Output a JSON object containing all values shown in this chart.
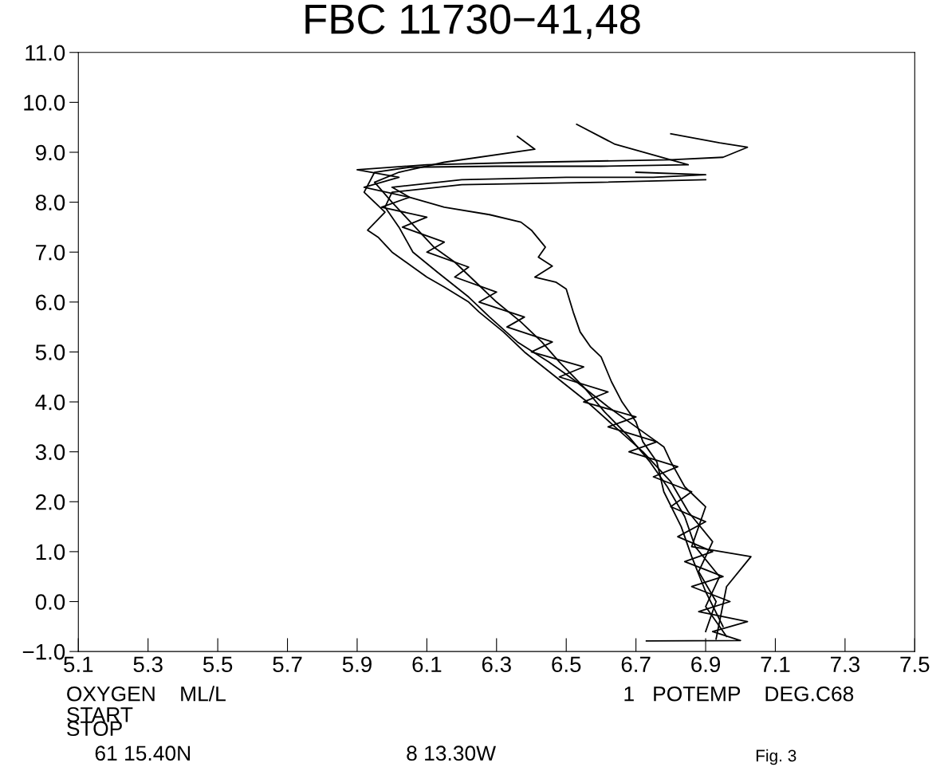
{
  "chart_data": {
    "type": "line",
    "title": "FBC 11730−41,48",
    "xlim": [
      5.1,
      7.5
    ],
    "xticks": [
      5.1,
      5.3,
      5.5,
      5.7,
      5.9,
      6.1,
      6.3,
      6.5,
      6.7,
      6.9,
      7.1,
      7.3,
      7.5
    ],
    "ylim": [
      -1,
      11
    ],
    "yticks": [
      {
        "value": -1,
        "label": "−1.0"
      },
      {
        "value": 0,
        "label": "0.0"
      },
      {
        "value": 1,
        "label": "1.0"
      },
      {
        "value": 2,
        "label": "2.0"
      },
      {
        "value": 3,
        "label": "3.0"
      },
      {
        "value": 4,
        "label": "4.0"
      },
      {
        "value": 5,
        "label": "5.0"
      },
      {
        "value": 6,
        "label": "6.0"
      },
      {
        "value": 7,
        "label": "7.0"
      },
      {
        "value": 8,
        "label": "8.0"
      },
      {
        "value": 9,
        "label": "9.0"
      },
      {
        "value": 10,
        "label": "10.0"
      },
      {
        "value": 11,
        "label": "11.0"
      }
    ],
    "grid": false,
    "marker": "none",
    "line_style": "solid",
    "annotations": [
      "OXYGEN    ML/L",
      "1   POTEMP    DEG.C68",
      "START",
      "STOP",
      "61 15.40N",
      "8 13.30W",
      "Fig. 3"
    ],
    "series": [
      {
        "color": "#000000",
        "x": [
          6.73,
          7.0,
          6.92,
          7.02,
          6.88,
          6.97,
          6.86,
          6.95,
          6.84,
          6.92,
          6.82,
          6.9,
          6.8,
          6.86,
          6.75,
          6.82,
          6.68,
          6.76,
          6.62,
          6.7,
          6.55,
          6.62,
          6.48,
          6.55,
          6.4,
          6.46,
          6.33,
          6.38,
          6.25,
          6.3,
          6.18,
          6.22,
          6.1,
          6.15,
          6.03,
          6.1,
          5.97,
          6.05,
          5.92,
          6.02,
          5.9,
          6.1,
          6.4,
          6.8,
          6.95,
          7.02,
          6.94,
          6.8
        ],
        "values": [
          -0.79,
          -0.78,
          -0.6,
          -0.4,
          -0.2,
          0.0,
          0.3,
          0.5,
          0.8,
          1.0,
          1.3,
          1.6,
          1.9,
          2.2,
          2.5,
          2.7,
          3.0,
          3.2,
          3.5,
          3.7,
          4.0,
          4.2,
          4.5,
          4.7,
          5.0,
          5.2,
          5.5,
          5.7,
          6.0,
          6.2,
          6.5,
          6.7,
          7.0,
          7.2,
          7.5,
          7.7,
          7.9,
          8.1,
          8.3,
          8.5,
          8.65,
          8.75,
          8.8,
          8.85,
          8.9,
          9.1,
          9.19,
          9.37
        ]
      },
      {
        "color": "#000000",
        "x": [
          6.95,
          6.9,
          6.86,
          6.83,
          6.78,
          6.76,
          6.72,
          6.7,
          6.66,
          6.63,
          6.6,
          6.57,
          6.54,
          6.52,
          6.5,
          6.47,
          6.41,
          6.46,
          6.42,
          6.44,
          6.4,
          6.37,
          6.28,
          6.15,
          6.05,
          6.0,
          6.2,
          6.5,
          6.75,
          6.9,
          6.7
        ],
        "values": [
          -0.5,
          0.2,
          0.9,
          1.5,
          2.2,
          2.8,
          3.2,
          3.6,
          4.0,
          4.4,
          4.9,
          5.1,
          5.4,
          5.8,
          6.26,
          6.4,
          6.5,
          6.72,
          6.9,
          7.1,
          7.44,
          7.6,
          7.75,
          7.9,
          8.1,
          8.3,
          8.45,
          8.5,
          8.5,
          8.55,
          8.6
        ]
      },
      {
        "color": "#000000",
        "x": [
          6.9,
          6.93,
          6.88,
          6.92,
          6.85,
          6.8,
          6.72,
          6.64,
          6.56,
          6.47,
          6.38,
          6.32,
          6.25,
          6.22,
          6.15,
          6.1,
          6.06,
          6.0,
          5.96,
          5.93,
          5.98,
          5.92,
          5.95,
          6.05,
          6.3,
          6.6,
          6.85,
          6.64,
          6.53
        ],
        "values": [
          -0.6,
          0.0,
          0.6,
          1.2,
          1.8,
          2.4,
          3.0,
          3.5,
          4.0,
          4.5,
          5.0,
          5.4,
          5.8,
          6.0,
          6.3,
          6.5,
          6.7,
          7.0,
          7.3,
          7.44,
          7.8,
          8.2,
          8.6,
          8.7,
          8.72,
          8.72,
          8.75,
          9.16,
          9.56
        ]
      },
      {
        "color": "#000000",
        "x": [
          6.96,
          6.9,
          6.94,
          6.87,
          6.84,
          6.79,
          6.74,
          6.68,
          6.61,
          6.55,
          6.48,
          6.43,
          6.37,
          6.3,
          6.24,
          6.18,
          6.12,
          6.08,
          6.04,
          6.0,
          5.95,
          6.02,
          6.15,
          6.41,
          6.36
        ],
        "values": [
          -0.7,
          -0.1,
          0.5,
          1.1,
          1.7,
          2.3,
          2.8,
          3.3,
          3.8,
          4.3,
          4.8,
          5.2,
          5.6,
          6.0,
          6.4,
          6.8,
          7.1,
          7.4,
          7.7,
          8.0,
          8.4,
          8.6,
          8.8,
          9.06,
          9.32
        ]
      },
      {
        "color": "#000000",
        "x": [
          6.93,
          6.96,
          7.03,
          6.86,
          6.9,
          6.84,
          6.8,
          6.78,
          6.72,
          6.62,
          6.53,
          6.45,
          6.36,
          6.28,
          6.22,
          6.13,
          6.06,
          6.02,
          5.98,
          6.0,
          6.2,
          6.6,
          6.9
        ],
        "values": [
          -0.75,
          0.3,
          0.9,
          1.1,
          1.9,
          2.3,
          2.8,
          3.1,
          3.4,
          3.9,
          4.4,
          4.8,
          5.2,
          5.7,
          6.1,
          6.6,
          7.0,
          7.5,
          7.9,
          8.2,
          8.35,
          8.4,
          8.45
        ]
      }
    ]
  }
}
